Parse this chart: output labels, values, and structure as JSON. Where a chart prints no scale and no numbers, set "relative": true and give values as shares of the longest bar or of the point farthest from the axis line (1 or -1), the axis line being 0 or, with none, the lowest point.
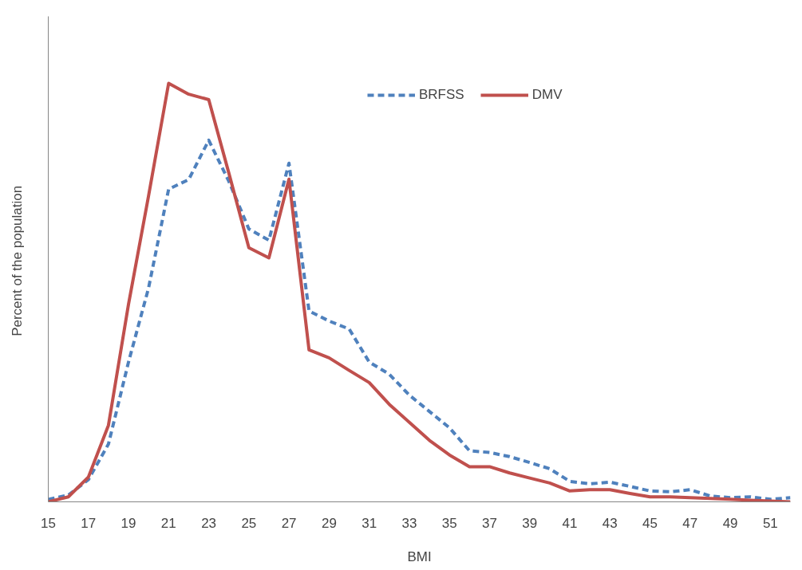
{
  "chart_data": {
    "type": "line",
    "relative": true,
    "xlabel": "BMI",
    "ylabel": "Percent of  the population",
    "x": [
      15,
      16,
      17,
      18,
      19,
      20,
      21,
      22,
      23,
      24,
      25,
      26,
      27,
      28,
      29,
      30,
      31,
      32,
      33,
      34,
      35,
      36,
      37,
      38,
      39,
      40,
      41,
      42,
      43,
      44,
      45,
      46,
      47,
      48,
      49,
      50,
      51,
      52
    ],
    "xlim": [
      15,
      52
    ],
    "xticks": [
      15,
      17,
      19,
      21,
      23,
      25,
      27,
      29,
      31,
      33,
      35,
      37,
      39,
      41,
      43,
      45,
      47,
      49,
      51
    ],
    "legend": "top right",
    "grid": false,
    "series": [
      {
        "name": "BRFSS",
        "color": "#4f81bd",
        "line_style": "dashed",
        "values": [
          0.006,
          0.016,
          0.053,
          0.138,
          0.334,
          0.511,
          0.747,
          0.77,
          0.864,
          0.766,
          0.652,
          0.625,
          0.809,
          0.456,
          0.432,
          0.413,
          0.334,
          0.305,
          0.255,
          0.216,
          0.177,
          0.122,
          0.118,
          0.108,
          0.094,
          0.079,
          0.049,
          0.043,
          0.047,
          0.037,
          0.026,
          0.024,
          0.029,
          0.014,
          0.01,
          0.012,
          0.006,
          0.01
        ]
      },
      {
        "name": "DMV",
        "color": "#c0504d",
        "line_style": "solid",
        "values": [
          0,
          0.012,
          0.059,
          0.183,
          0.472,
          0.731,
          1,
          0.974,
          0.961,
          0.786,
          0.607,
          0.583,
          0.771,
          0.363,
          0.344,
          0.314,
          0.285,
          0.233,
          0.19,
          0.147,
          0.112,
          0.084,
          0.084,
          0.069,
          0.057,
          0.045,
          0.026,
          0.029,
          0.029,
          0.02,
          0.012,
          0.012,
          0.01,
          0.008,
          0.006,
          0.004,
          0.002,
          0
        ]
      }
    ]
  }
}
